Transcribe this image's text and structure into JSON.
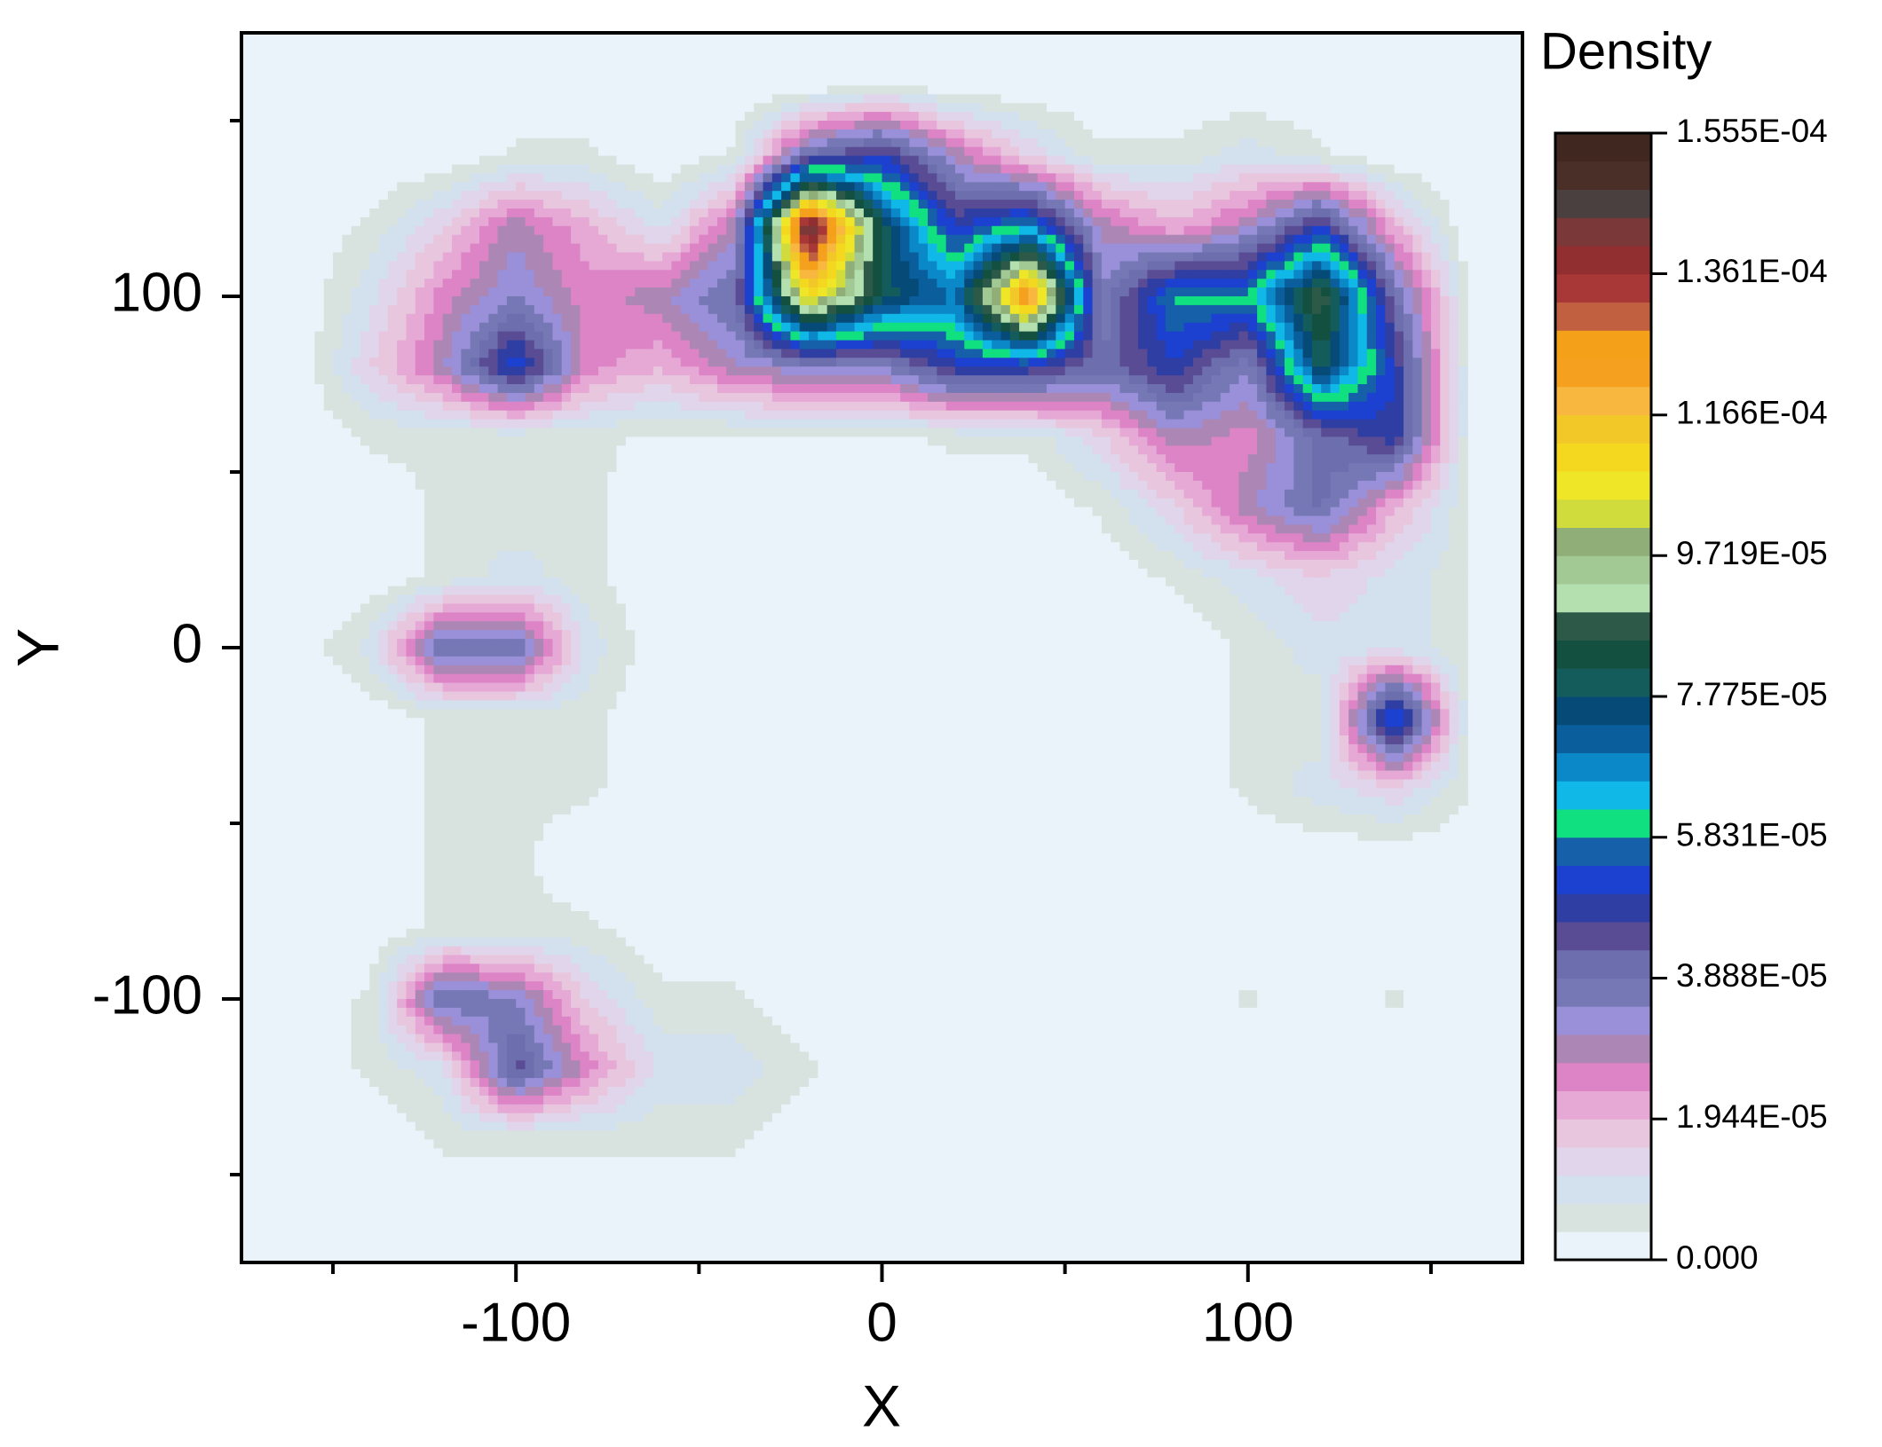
{
  "chart_data": {
    "type": "contour",
    "x_label": "X",
    "y_label": "Y",
    "colorbar_title": "Density",
    "xlim": [
      -175,
      175
    ],
    "ylim": [
      -175,
      175
    ],
    "xticks": [
      -100,
      0,
      100
    ],
    "yticks": [
      -100,
      0,
      100
    ],
    "xminor_ticks": [
      -150,
      -50,
      50,
      150
    ],
    "yminor_ticks": [
      -150,
      -50,
      50,
      150
    ],
    "x": [
      -160,
      -140,
      -120,
      -100,
      -80,
      -60,
      -40,
      -20,
      0,
      20,
      40,
      60,
      80,
      100,
      120,
      140,
      160
    ],
    "y": [
      160,
      140,
      120,
      100,
      80,
      60,
      40,
      20,
      0,
      -20,
      -40,
      -60,
      -80,
      -100,
      -120,
      -140,
      -160
    ],
    "z": [
      [
        0,
        0,
        0,
        0,
        0,
        0,
        0,
        0,
        5e-06,
        0,
        0,
        0,
        0,
        0,
        0,
        0,
        0
      ],
      [
        0,
        0,
        0,
        5e-06,
        5e-06,
        0,
        5e-06,
        4e-05,
        5e-05,
        3e-05,
        1.5e-05,
        5e-06,
        5e-06,
        1e-05,
        5e-06,
        0,
        0
      ],
      [
        0,
        5e-06,
        1.5e-05,
        3e-05,
        2e-05,
        1e-05,
        3e-05,
        0.00015,
        8e-05,
        5e-05,
        6e-05,
        3e-05,
        2e-05,
        3e-05,
        5e-05,
        2e-05,
        0
      ],
      [
        0,
        1e-05,
        2.5e-05,
        3.5e-05,
        2.5e-05,
        3e-05,
        4e-05,
        0.00011,
        8e-05,
        7e-05,
        0.00013,
        3.5e-05,
        6e-05,
        6e-05,
        9e-05,
        4e-05,
        5e-06
      ],
      [
        0,
        1.5e-05,
        3e-05,
        5.5e-05,
        2.5e-05,
        2e-05,
        3e-05,
        3.5e-05,
        3.5e-05,
        5e-05,
        5e-05,
        4e-05,
        5e-05,
        3.5e-05,
        8e-05,
        5e-05,
        5e-06
      ],
      [
        0,
        5e-06,
        5e-06,
        5e-06,
        5e-06,
        3e-06,
        3e-06,
        3e-06,
        3e-06,
        5e-06,
        5e-06,
        1.5e-05,
        3e-05,
        2.5e-05,
        4e-05,
        5e-05,
        5e-06
      ],
      [
        0,
        0,
        5e-06,
        5e-06,
        5e-06,
        0,
        0,
        0,
        0,
        0,
        0,
        5e-06,
        1.5e-05,
        3e-05,
        4e-05,
        2e-05,
        5e-06
      ],
      [
        0,
        0,
        5e-06,
        1e-05,
        5e-06,
        0,
        0,
        0,
        0,
        0,
        0,
        0,
        5e-06,
        1e-05,
        1.5e-05,
        1e-05,
        5e-06
      ],
      [
        0,
        1e-05,
        4e-05,
        4e-05,
        1e-05,
        0,
        0,
        0,
        0,
        0,
        0,
        0,
        0,
        5e-06,
        1e-05,
        1e-05,
        5e-06
      ],
      [
        0,
        0,
        5e-06,
        5e-06,
        5e-06,
        0,
        0,
        0,
        0,
        0,
        0,
        0,
        0,
        5e-06,
        5e-06,
        6e-05,
        5e-06
      ],
      [
        0,
        0,
        5e-06,
        5e-06,
        5e-06,
        0,
        0,
        0,
        0,
        0,
        0,
        0,
        0,
        5e-06,
        1e-05,
        1.5e-05,
        5e-06
      ],
      [
        0,
        0,
        5e-06,
        5e-06,
        0,
        0,
        0,
        0,
        0,
        0,
        0,
        0,
        0,
        0,
        0,
        0,
        0
      ],
      [
        0,
        0,
        5e-06,
        5e-06,
        5e-06,
        0,
        0,
        0,
        0,
        0,
        0,
        0,
        0,
        0,
        0,
        0,
        0
      ],
      [
        0,
        5e-06,
        4e-05,
        3.5e-05,
        1.5e-05,
        5e-06,
        5e-06,
        0,
        0,
        0,
        0,
        0,
        0,
        5e-06,
        0,
        5e-06,
        0
      ],
      [
        0,
        5e-06,
        1e-05,
        4.5e-05,
        2.5e-05,
        1e-05,
        1e-05,
        5e-06,
        0,
        0,
        0,
        0,
        0,
        0,
        0,
        0,
        0
      ],
      [
        0,
        0,
        5e-06,
        5e-06,
        5e-06,
        5e-06,
        5e-06,
        0,
        0,
        0,
        0,
        0,
        0,
        0,
        0,
        0,
        0
      ],
      [
        0,
        0,
        0,
        0,
        0,
        0,
        0,
        0,
        0,
        0,
        0,
        0,
        0,
        0,
        0,
        0,
        0
      ]
    ],
    "zlim": [
      0,
      0.0001555
    ],
    "zticks": [
      {
        "value": 0,
        "label": "0.000"
      },
      {
        "value": 1.944e-05,
        "label": "1.944E-05"
      },
      {
        "value": 3.888e-05,
        "label": "3.888E-05"
      },
      {
        "value": 5.831e-05,
        "label": "5.831E-05"
      },
      {
        "value": 7.775e-05,
        "label": "7.775E-05"
      },
      {
        "value": 9.719e-05,
        "label": "9.719E-05"
      },
      {
        "value": 0.0001166,
        "label": "1.166E-04"
      },
      {
        "value": 0.0001361,
        "label": "1.361E-04"
      },
      {
        "value": 0.0001555,
        "label": "1.555E-04"
      }
    ],
    "colors": [
      "#eaf3f9",
      "#d8e3df",
      "#d3e0ee",
      "#e0d5ea",
      "#e8c6de",
      "#e6a8d4",
      "#dc84c6",
      "#ac86b4",
      "#9a90da",
      "#7678b6",
      "#6c6eae",
      "#5a4c94",
      "#2f3ea2",
      "#1c40d0",
      "#1560a8",
      "#10e080",
      "#10b8e8",
      "#0a88c8",
      "#0a5e9c",
      "#064a78",
      "#145c5c",
      "#145040",
      "#2d5a48",
      "#b4e0b0",
      "#a2c894",
      "#8fae78",
      "#d0dc3c",
      "#f0e628",
      "#f4d820",
      "#f2c828",
      "#f8b840",
      "#f6a020",
      "#f4a018",
      "#c06040",
      "#a83838",
      "#902e30",
      "#7a3838",
      "#4a4040",
      "#4a2e28",
      "#402820"
    ]
  }
}
